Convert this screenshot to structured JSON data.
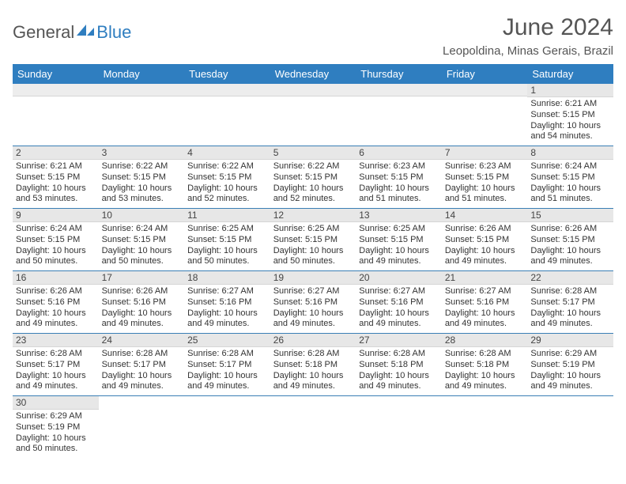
{
  "brand": {
    "part1": "General",
    "part2": "Blue",
    "shape_color": "#2f7ec0"
  },
  "title": "June 2024",
  "location": "Leopoldina, Minas Gerais, Brazil",
  "colors": {
    "header_bg": "#2f7ec0",
    "header_fg": "#ffffff",
    "daynum_bg": "#e7e7e7",
    "row_border": "#3a7fb5",
    "text": "#333333"
  },
  "dayHeaders": [
    "Sunday",
    "Monday",
    "Tuesday",
    "Wednesday",
    "Thursday",
    "Friday",
    "Saturday"
  ],
  "weeks": [
    [
      null,
      null,
      null,
      null,
      null,
      null,
      {
        "n": "1",
        "sunrise": "6:21 AM",
        "sunset": "5:15 PM",
        "daylight": "10 hours and 54 minutes."
      }
    ],
    [
      {
        "n": "2",
        "sunrise": "6:21 AM",
        "sunset": "5:15 PM",
        "daylight": "10 hours and 53 minutes."
      },
      {
        "n": "3",
        "sunrise": "6:22 AM",
        "sunset": "5:15 PM",
        "daylight": "10 hours and 53 minutes."
      },
      {
        "n": "4",
        "sunrise": "6:22 AM",
        "sunset": "5:15 PM",
        "daylight": "10 hours and 52 minutes."
      },
      {
        "n": "5",
        "sunrise": "6:22 AM",
        "sunset": "5:15 PM",
        "daylight": "10 hours and 52 minutes."
      },
      {
        "n": "6",
        "sunrise": "6:23 AM",
        "sunset": "5:15 PM",
        "daylight": "10 hours and 51 minutes."
      },
      {
        "n": "7",
        "sunrise": "6:23 AM",
        "sunset": "5:15 PM",
        "daylight": "10 hours and 51 minutes."
      },
      {
        "n": "8",
        "sunrise": "6:24 AM",
        "sunset": "5:15 PM",
        "daylight": "10 hours and 51 minutes."
      }
    ],
    [
      {
        "n": "9",
        "sunrise": "6:24 AM",
        "sunset": "5:15 PM",
        "daylight": "10 hours and 50 minutes."
      },
      {
        "n": "10",
        "sunrise": "6:24 AM",
        "sunset": "5:15 PM",
        "daylight": "10 hours and 50 minutes."
      },
      {
        "n": "11",
        "sunrise": "6:25 AM",
        "sunset": "5:15 PM",
        "daylight": "10 hours and 50 minutes."
      },
      {
        "n": "12",
        "sunrise": "6:25 AM",
        "sunset": "5:15 PM",
        "daylight": "10 hours and 50 minutes."
      },
      {
        "n": "13",
        "sunrise": "6:25 AM",
        "sunset": "5:15 PM",
        "daylight": "10 hours and 49 minutes."
      },
      {
        "n": "14",
        "sunrise": "6:26 AM",
        "sunset": "5:15 PM",
        "daylight": "10 hours and 49 minutes."
      },
      {
        "n": "15",
        "sunrise": "6:26 AM",
        "sunset": "5:15 PM",
        "daylight": "10 hours and 49 minutes."
      }
    ],
    [
      {
        "n": "16",
        "sunrise": "6:26 AM",
        "sunset": "5:16 PM",
        "daylight": "10 hours and 49 minutes."
      },
      {
        "n": "17",
        "sunrise": "6:26 AM",
        "sunset": "5:16 PM",
        "daylight": "10 hours and 49 minutes."
      },
      {
        "n": "18",
        "sunrise": "6:27 AM",
        "sunset": "5:16 PM",
        "daylight": "10 hours and 49 minutes."
      },
      {
        "n": "19",
        "sunrise": "6:27 AM",
        "sunset": "5:16 PM",
        "daylight": "10 hours and 49 minutes."
      },
      {
        "n": "20",
        "sunrise": "6:27 AM",
        "sunset": "5:16 PM",
        "daylight": "10 hours and 49 minutes."
      },
      {
        "n": "21",
        "sunrise": "6:27 AM",
        "sunset": "5:16 PM",
        "daylight": "10 hours and 49 minutes."
      },
      {
        "n": "22",
        "sunrise": "6:28 AM",
        "sunset": "5:17 PM",
        "daylight": "10 hours and 49 minutes."
      }
    ],
    [
      {
        "n": "23",
        "sunrise": "6:28 AM",
        "sunset": "5:17 PM",
        "daylight": "10 hours and 49 minutes."
      },
      {
        "n": "24",
        "sunrise": "6:28 AM",
        "sunset": "5:17 PM",
        "daylight": "10 hours and 49 minutes."
      },
      {
        "n": "25",
        "sunrise": "6:28 AM",
        "sunset": "5:17 PM",
        "daylight": "10 hours and 49 minutes."
      },
      {
        "n": "26",
        "sunrise": "6:28 AM",
        "sunset": "5:18 PM",
        "daylight": "10 hours and 49 minutes."
      },
      {
        "n": "27",
        "sunrise": "6:28 AM",
        "sunset": "5:18 PM",
        "daylight": "10 hours and 49 minutes."
      },
      {
        "n": "28",
        "sunrise": "6:28 AM",
        "sunset": "5:18 PM",
        "daylight": "10 hours and 49 minutes."
      },
      {
        "n": "29",
        "sunrise": "6:29 AM",
        "sunset": "5:19 PM",
        "daylight": "10 hours and 49 minutes."
      }
    ],
    [
      {
        "n": "30",
        "sunrise": "6:29 AM",
        "sunset": "5:19 PM",
        "daylight": "10 hours and 50 minutes."
      },
      null,
      null,
      null,
      null,
      null,
      null
    ]
  ],
  "labels": {
    "sunrise": "Sunrise:",
    "sunset": "Sunset:",
    "daylight": "Daylight:"
  }
}
